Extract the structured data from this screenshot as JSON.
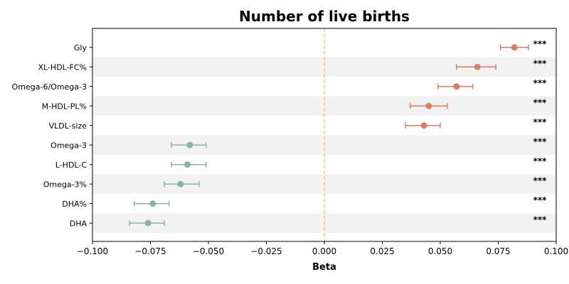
{
  "chart_data": {
    "type": "forest",
    "title": "Number of live births",
    "xlabel": "Beta",
    "xlim": [
      -0.1,
      0.1
    ],
    "xticks": [
      -0.1,
      -0.075,
      -0.05,
      -0.025,
      0.0,
      0.025,
      0.05,
      0.075,
      0.1
    ],
    "xtick_labels": [
      "−0.100",
      "−0.075",
      "−0.050",
      "−0.025",
      "0.000",
      "0.025",
      "0.050",
      "0.075",
      "0.100"
    ],
    "reference_line": 0.0,
    "reference_line_color": "#f5c27a",
    "positive_color": "#dd7a5f",
    "negative_color": "#84b6a0",
    "stripe_color": "#f2f2f2",
    "rows": [
      {
        "label": "Gly",
        "beta": 0.082,
        "ci_low": 0.076,
        "ci_high": 0.088,
        "sig": "***"
      },
      {
        "label": "XL-HDL-FC%",
        "beta": 0.066,
        "ci_low": 0.057,
        "ci_high": 0.074,
        "sig": "***"
      },
      {
        "label": "Omega-6/Omega-3",
        "beta": 0.057,
        "ci_low": 0.049,
        "ci_high": 0.064,
        "sig": "***"
      },
      {
        "label": "M-HDL-PL%",
        "beta": 0.045,
        "ci_low": 0.037,
        "ci_high": 0.053,
        "sig": "***"
      },
      {
        "label": "VLDL-size",
        "beta": 0.043,
        "ci_low": 0.035,
        "ci_high": 0.05,
        "sig": "***"
      },
      {
        "label": "Omega-3",
        "beta": -0.058,
        "ci_low": -0.066,
        "ci_high": -0.051,
        "sig": "***"
      },
      {
        "label": "L-HDL-C",
        "beta": -0.059,
        "ci_low": -0.066,
        "ci_high": -0.051,
        "sig": "***"
      },
      {
        "label": "Omega-3%",
        "beta": -0.062,
        "ci_low": -0.069,
        "ci_high": -0.054,
        "sig": "***"
      },
      {
        "label": "DHA%",
        "beta": -0.074,
        "ci_low": -0.082,
        "ci_high": -0.067,
        "sig": "***"
      },
      {
        "label": "DHA",
        "beta": -0.076,
        "ci_low": -0.084,
        "ci_high": -0.069,
        "sig": "***"
      }
    ]
  }
}
